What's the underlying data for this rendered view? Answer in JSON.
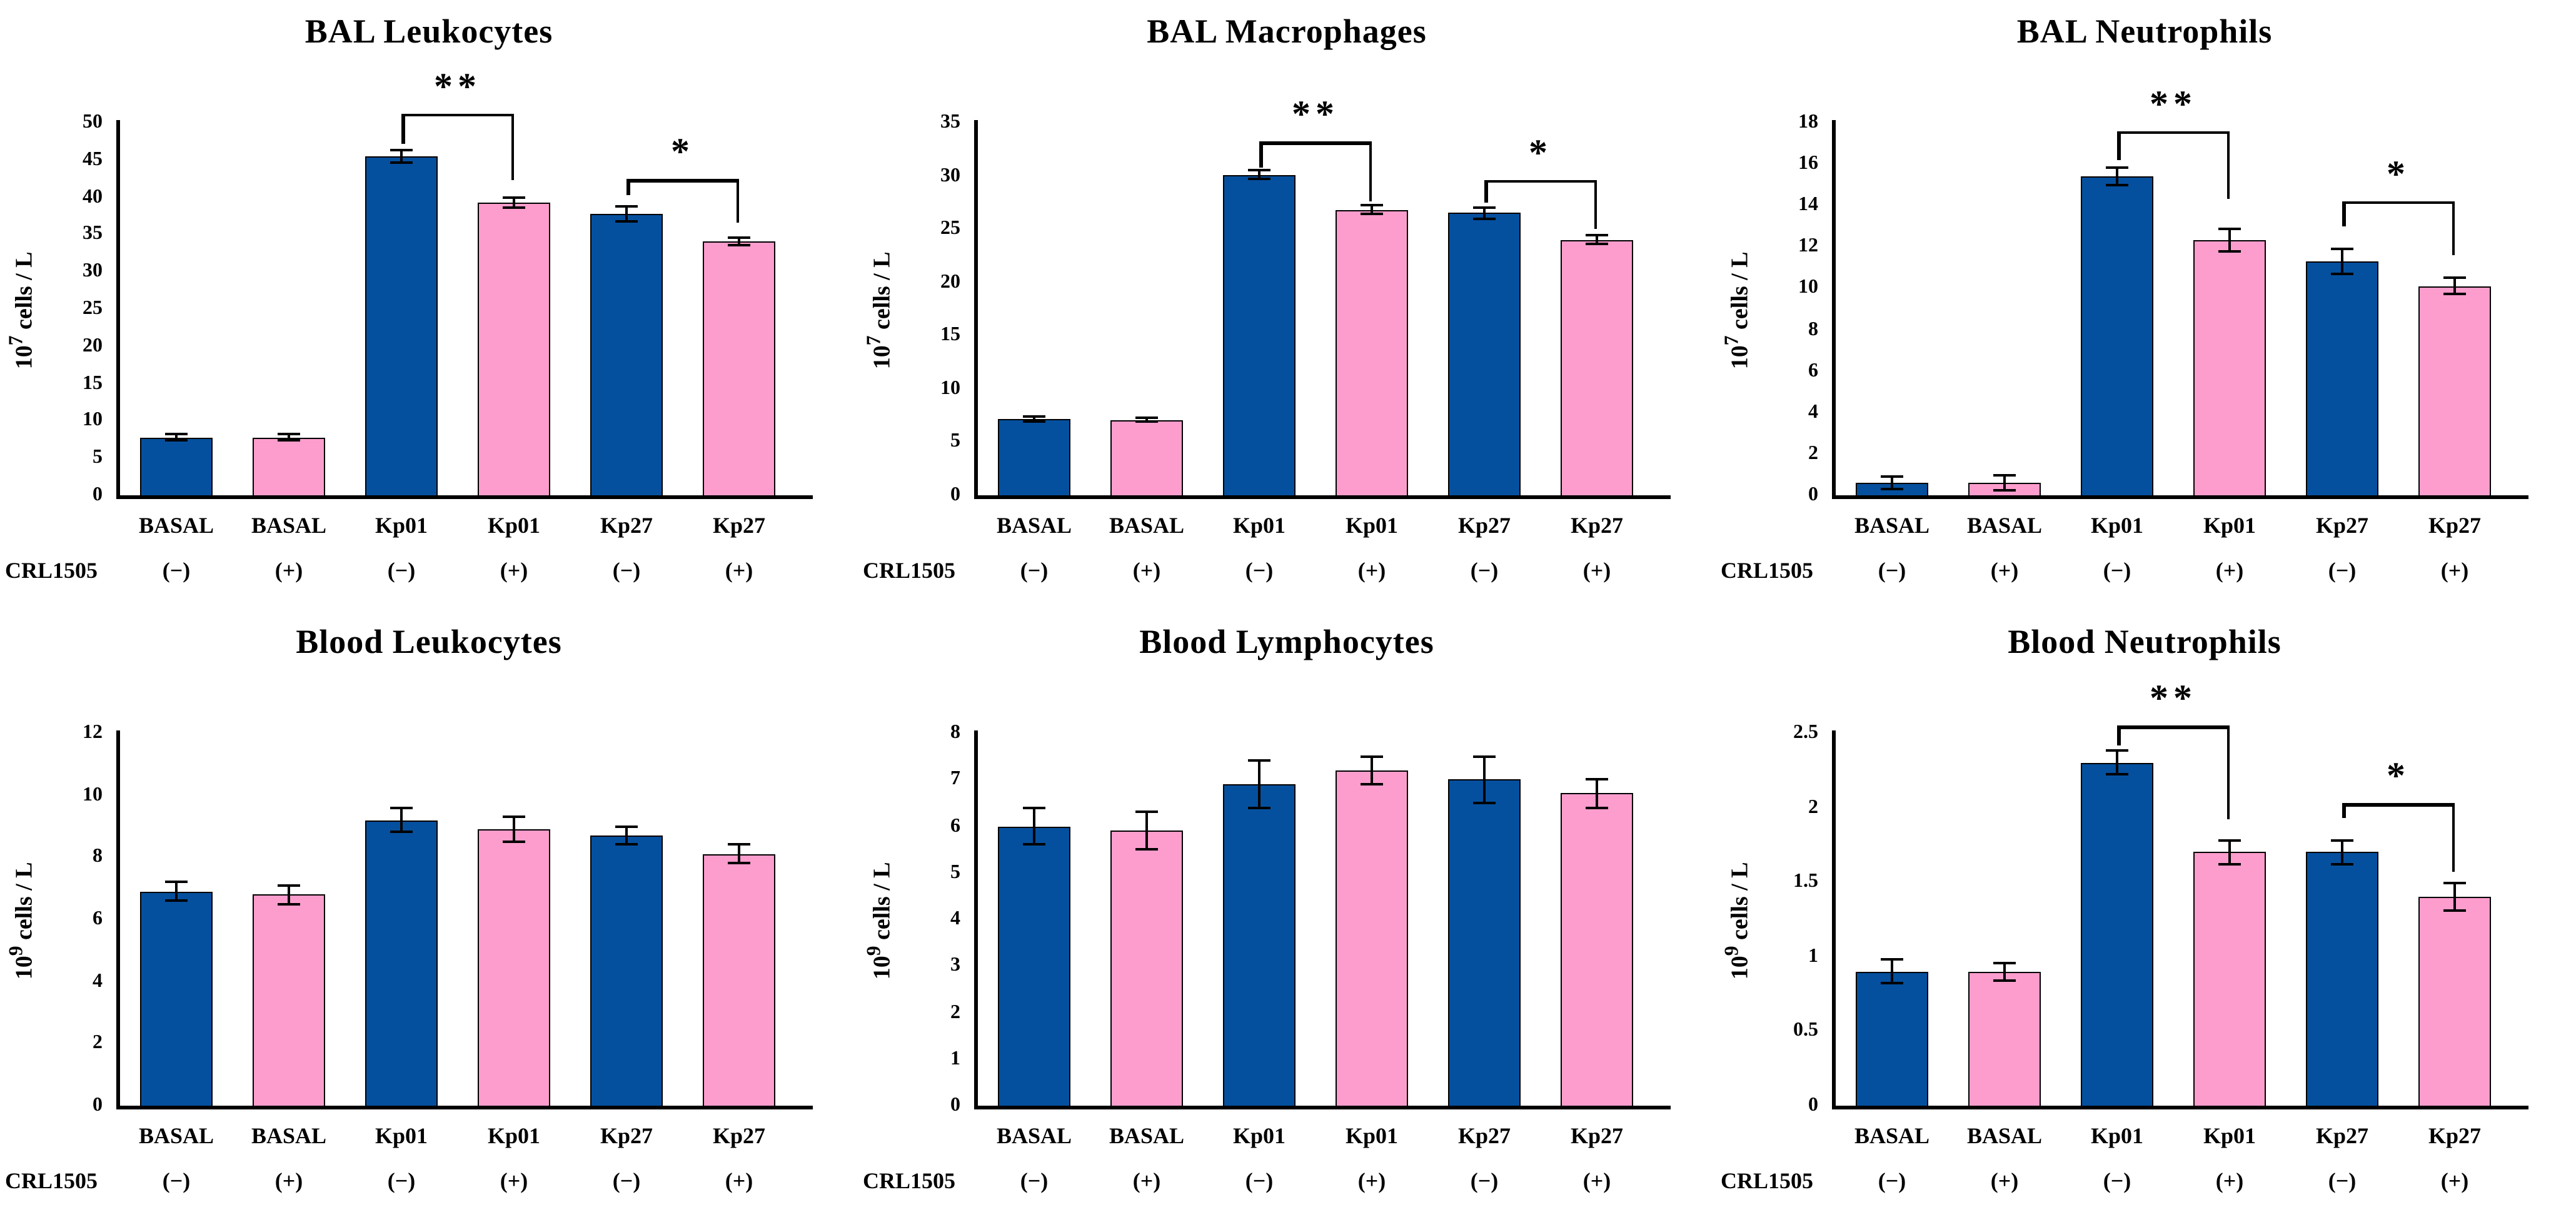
{
  "figure": {
    "background": "#FFFFFF",
    "colors": {
      "bar_blue": "#05509E",
      "bar_pink": "#FC9DCD",
      "axis": "#000000",
      "text": "#000000"
    },
    "series_legend": [
      {
        "name": "CRL1505 (−)",
        "color": "#05509E"
      },
      {
        "name": "CRL1505 (+)",
        "color": "#FC9DCD"
      }
    ]
  },
  "chart_data": [
    {
      "type": "bar",
      "title": "BAL Leukocytes",
      "ylabel": "10⁷ cells / L",
      "xlabel": "",
      "ylim": [
        0,
        50
      ],
      "ytick_step": 5,
      "grid": false,
      "categories": [
        "BASAL",
        "BASAL",
        "Kp01",
        "Kp01",
        "Kp27",
        "Kp27"
      ],
      "group_row_label": "CRL1505",
      "group_row_values": [
        "(−)",
        "(+)",
        "(−)",
        "(+)",
        "(−)",
        "(+)"
      ],
      "bar_color_keys": [
        "bar_blue",
        "bar_pink",
        "bar_blue",
        "bar_pink",
        "bar_blue",
        "bar_pink"
      ],
      "values": [
        7.8,
        7.8,
        45.5,
        39.3,
        37.8,
        34.0
      ],
      "errors": [
        0.4,
        0.5,
        0.8,
        0.7,
        1.0,
        0.5
      ],
      "significance": [
        {
          "from": 2,
          "to": 3,
          "label": "**",
          "y": 51.2,
          "left_y": 47.2,
          "right_y": 42.3
        },
        {
          "from": 4,
          "to": 5,
          "label": "*",
          "y": 42.4,
          "left_y": 40.3,
          "right_y": 36.5
        }
      ]
    },
    {
      "type": "bar",
      "title": "BAL Macrophages",
      "ylabel": "10⁷ cells / L",
      "xlabel": "",
      "ylim": [
        0,
        35
      ],
      "ytick_step": 5,
      "grid": false,
      "categories": [
        "BASAL",
        "BASAL",
        "Kp01",
        "Kp01",
        "Kp27",
        "Kp27"
      ],
      "group_row_label": "CRL1505",
      "group_row_values": [
        "(−)",
        "(+)",
        "(−)",
        "(+)",
        "(−)",
        "(+)"
      ],
      "bar_color_keys": [
        "bar_blue",
        "bar_pink",
        "bar_blue",
        "bar_pink",
        "bar_blue",
        "bar_pink"
      ],
      "values": [
        7.2,
        7.1,
        30.1,
        26.8,
        26.5,
        24.0
      ],
      "errors": [
        0.25,
        0.2,
        0.4,
        0.4,
        0.5,
        0.4
      ],
      "significance": [
        {
          "from": 2,
          "to": 3,
          "label": "**",
          "y": 33.2,
          "left_y": 30.8,
          "right_y": 27.6
        },
        {
          "from": 4,
          "to": 5,
          "label": "*",
          "y": 29.6,
          "left_y": 27.5,
          "right_y": 25.0
        }
      ]
    },
    {
      "type": "bar",
      "title": "BAL Neutrophils",
      "ylabel": "10⁷ cells / L",
      "xlabel": "",
      "ylim": [
        0,
        18
      ],
      "ytick_step": 2,
      "grid": false,
      "categories": [
        "BASAL",
        "BASAL",
        "Kp01",
        "Kp01",
        "Kp27",
        "Kp27"
      ],
      "group_row_label": "CRL1505",
      "group_row_values": [
        "(−)",
        "(+)",
        "(−)",
        "(+)",
        "(−)",
        "(+)"
      ],
      "bar_color_keys": [
        "bar_blue",
        "bar_pink",
        "bar_blue",
        "bar_pink",
        "bar_blue",
        "bar_pink"
      ],
      "values": [
        0.6,
        0.6,
        15.4,
        12.3,
        11.3,
        10.1
      ],
      "errors": [
        0.3,
        0.35,
        0.4,
        0.55,
        0.6,
        0.4
      ],
      "significance": [
        {
          "from": 2,
          "to": 3,
          "label": "**",
          "y": 17.6,
          "left_y": 16.2,
          "right_y": 14.3
        },
        {
          "from": 4,
          "to": 5,
          "label": "*",
          "y": 14.2,
          "left_y": 13.0,
          "right_y": 11.6
        }
      ]
    },
    {
      "type": "bar",
      "title": "Blood Leukocytes",
      "ylabel": "10⁹ cells / L",
      "xlabel": "",
      "ylim": [
        0,
        12
      ],
      "ytick_step": 2,
      "grid": false,
      "categories": [
        "BASAL",
        "BASAL",
        "Kp01",
        "Kp01",
        "Kp27",
        "Kp27"
      ],
      "group_row_label": "CRL1505",
      "group_row_values": [
        "(−)",
        "(+)",
        "(−)",
        "(+)",
        "(−)",
        "(+)"
      ],
      "bar_color_keys": [
        "bar_blue",
        "bar_pink",
        "bar_blue",
        "bar_pink",
        "bar_blue",
        "bar_pink"
      ],
      "values": [
        6.9,
        6.8,
        9.2,
        8.9,
        8.7,
        8.1
      ],
      "errors": [
        0.3,
        0.3,
        0.4,
        0.4,
        0.3,
        0.3
      ],
      "significance": []
    },
    {
      "type": "bar",
      "title": "Blood Lymphocytes",
      "ylabel": "10⁹ cells / L",
      "xlabel": "",
      "ylim": [
        0,
        8
      ],
      "ytick_step": 1,
      "grid": false,
      "categories": [
        "BASAL",
        "BASAL",
        "Kp01",
        "Kp01",
        "Kp27",
        "Kp27"
      ],
      "group_row_label": "CRL1505",
      "group_row_values": [
        "(−)",
        "(+)",
        "(−)",
        "(+)",
        "(−)",
        "(+)"
      ],
      "bar_color_keys": [
        "bar_blue",
        "bar_pink",
        "bar_blue",
        "bar_pink",
        "bar_blue",
        "bar_pink"
      ],
      "values": [
        6.0,
        5.9,
        6.9,
        7.2,
        7.0,
        6.7
      ],
      "errors": [
        0.4,
        0.4,
        0.5,
        0.3,
        0.5,
        0.3
      ],
      "significance": []
    },
    {
      "type": "bar",
      "title": "Blood Neutrophils",
      "ylabel": "10⁹ cells / L",
      "xlabel": "",
      "ylim": [
        0,
        2.5
      ],
      "ytick_step": 0.5,
      "grid": false,
      "categories": [
        "BASAL",
        "BASAL",
        "Kp01",
        "Kp01",
        "Kp27",
        "Kp27"
      ],
      "group_row_label": "CRL1505",
      "group_row_values": [
        "(−)",
        "(+)",
        "(−)",
        "(+)",
        "(−)",
        "(+)"
      ],
      "bar_color_keys": [
        "bar_blue",
        "bar_pink",
        "bar_blue",
        "bar_pink",
        "bar_blue",
        "bar_pink"
      ],
      "values": [
        0.9,
        0.9,
        2.3,
        1.7,
        1.7,
        1.4
      ],
      "errors": [
        0.08,
        0.06,
        0.08,
        0.08,
        0.08,
        0.09
      ],
      "significance": [
        {
          "from": 2,
          "to": 3,
          "label": "**",
          "y": 2.55,
          "left_y": 2.42,
          "right_y": 1.92
        },
        {
          "from": 4,
          "to": 5,
          "label": "*",
          "y": 2.03,
          "left_y": 1.93,
          "right_y": 1.57
        }
      ]
    }
  ]
}
